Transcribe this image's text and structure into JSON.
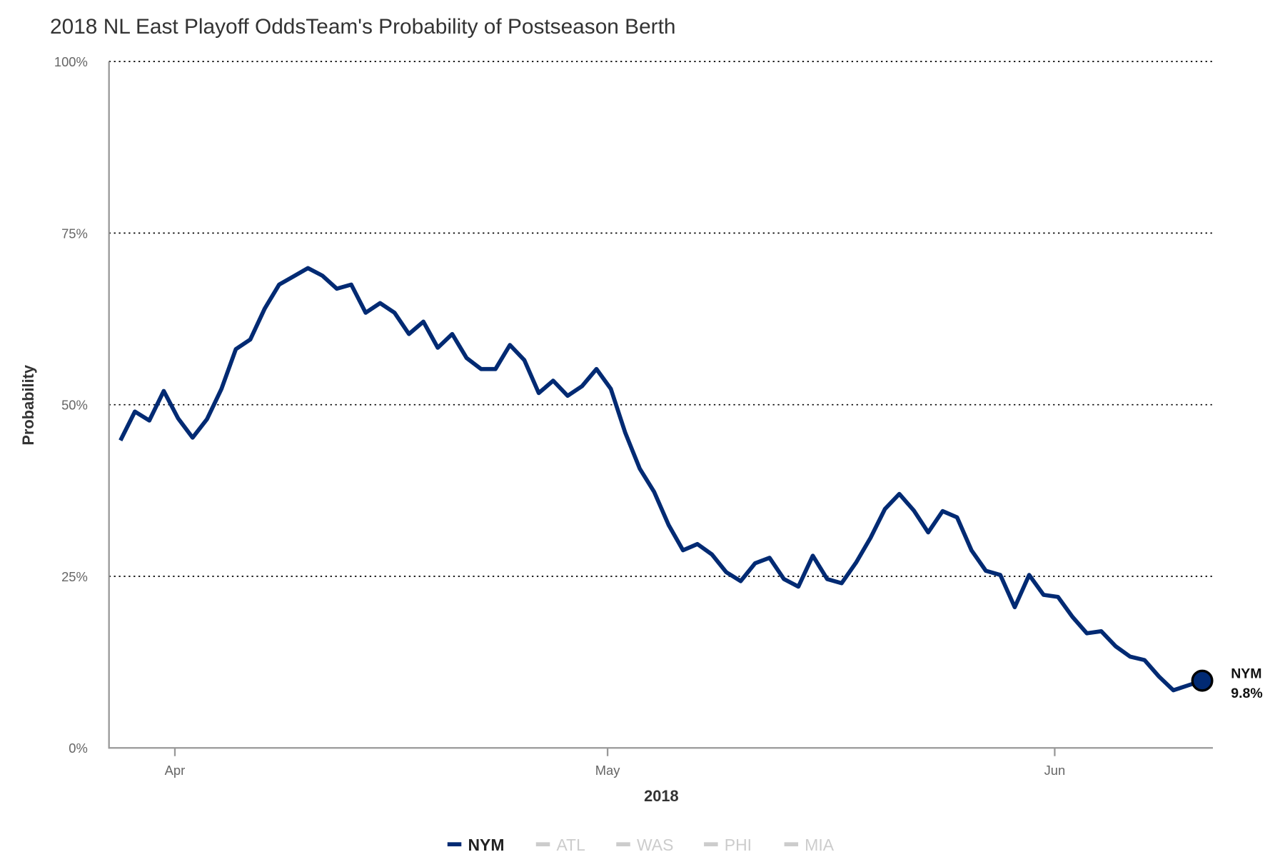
{
  "title": "2018 NL East Playoff OddsTeam's Probability of Postseason Berth",
  "colors": {
    "NYM": "#012a73",
    "inactive": "#cccccc",
    "axis": "#999999"
  },
  "chart_data": {
    "type": "line",
    "title": "2018 NL East Playoff OddsTeam's Probability of Postseason Berth",
    "xlabel": "2018",
    "ylabel": "Probability",
    "ylim": [
      0,
      100
    ],
    "yticks": [
      "0%",
      "25%",
      "50%",
      "75%",
      "100%"
    ],
    "ytick_values": [
      0,
      25,
      50,
      75,
      100
    ],
    "xticks": [
      "Apr",
      "May",
      "Jun"
    ],
    "xtick_dates": [
      "2018-04-01",
      "2018-05-01",
      "2018-06-01"
    ],
    "x_start": "2018-03-28",
    "x_end": "2018-06-11",
    "grid": "horizontal dotted",
    "legend": {
      "position": "bottom",
      "items": [
        "NYM",
        "ATL",
        "WAS",
        "PHI",
        "MIA"
      ],
      "active": [
        "NYM"
      ]
    },
    "end_label": {
      "team": "NYM",
      "value": "9.8%"
    },
    "series": [
      {
        "name": "NYM",
        "values": [
          44.8,
          49.0,
          47.7,
          52.0,
          48.0,
          45.2,
          47.9,
          52.3,
          58.1,
          59.5,
          64.0,
          67.5,
          68.7,
          69.9,
          68.8,
          66.9,
          67.5,
          63.4,
          64.8,
          63.4,
          60.3,
          62.1,
          58.3,
          60.3,
          56.8,
          55.2,
          55.2,
          58.7,
          56.5,
          51.7,
          53.5,
          51.3,
          52.7,
          55.2,
          52.3,
          45.9,
          40.7,
          37.3,
          32.5,
          28.8,
          29.7,
          28.2,
          25.6,
          24.3,
          26.9,
          27.7,
          24.6,
          23.5,
          28.0,
          24.6,
          24.0,
          27.0,
          30.6,
          34.8,
          37.0,
          34.6,
          31.4,
          34.5,
          33.6,
          28.8,
          25.8,
          25.2,
          20.5,
          25.2,
          22.3,
          22.0,
          19.1,
          16.7,
          17.0,
          14.8,
          13.3,
          12.8,
          10.4,
          8.4,
          9.1,
          9.8
        ]
      }
    ]
  }
}
